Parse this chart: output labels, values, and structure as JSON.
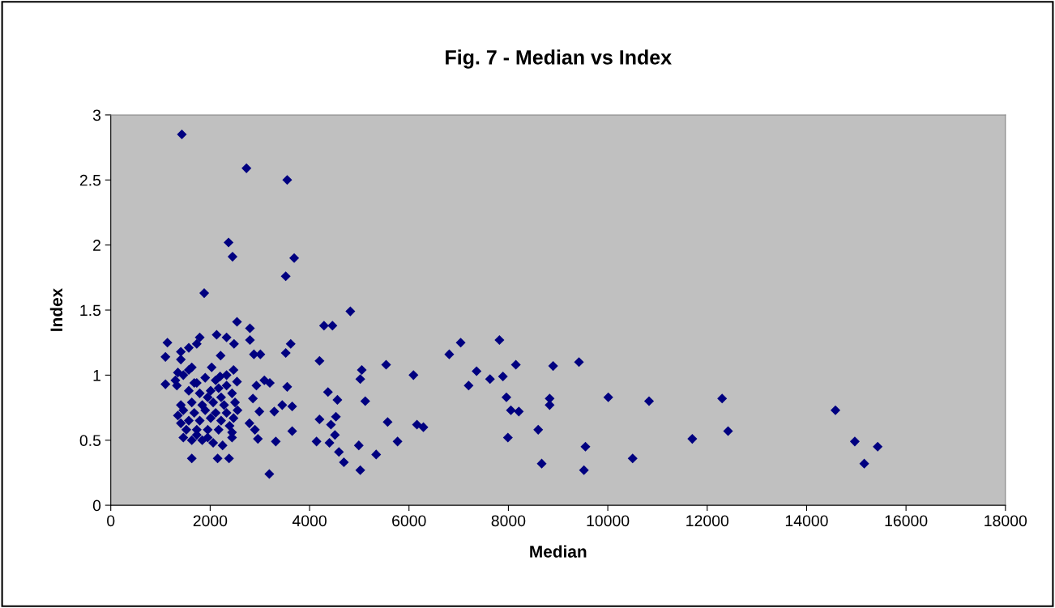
{
  "chart_data": {
    "type": "scatter",
    "title": "Fig. 7 - Median vs Index",
    "xlabel": "Median",
    "ylabel": "Index",
    "xlim": [
      0,
      18000
    ],
    "xticks": [
      0,
      2000,
      4000,
      6000,
      8000,
      10000,
      12000,
      14000,
      16000,
      18000
    ],
    "ylim": [
      0,
      3
    ],
    "yticks": [
      0,
      {
        "value": 0.5,
        "label": "0.5"
      },
      1,
      {
        "value": 1.5,
        "label": "1.5"
      },
      2,
      {
        "value": 2.5,
        "label": "2.5"
      },
      3
    ],
    "grid": false,
    "legend": false,
    "marker": "diamond",
    "series": [
      {
        "color": "#000080",
        "x": [
          1430,
          2730,
          3550,
          2370,
          2450,
          3690,
          3520,
          1880,
          2540,
          4820,
          4290,
          4460,
          2800,
          3620,
          3520,
          4200,
          5050,
          5020,
          5540,
          6090,
          6810,
          7040,
          7820,
          7360,
          7200,
          7630,
          7890,
          8150,
          8900,
          9420,
          7960,
          8050,
          8210,
          8830,
          8830,
          8600,
          7990,
          8670,
          9550,
          9520,
          3200,
          3550,
          3450,
          3650,
          3290,
          3650,
          3320,
          3190,
          4370,
          4560,
          5120,
          4200,
          4530,
          4430,
          4510,
          4140,
          4400,
          4590,
          4690,
          4990,
          5020,
          5340,
          5570,
          5770,
          6160,
          6290,
          10010,
          10830,
          12300,
          14580,
          10500,
          11700,
          12420,
          14970,
          15430,
          15160,
          1140,
          1790,
          2130,
          2330,
          2480,
          2800,
          1100,
          1410,
          1410,
          1570,
          1730,
          2210,
          2880,
          3010,
          1100,
          1330,
          1350,
          1630,
          2030,
          2470,
          2540,
          2200,
          2930,
          3090,
          2860,
          2990,
          2790,
          2900,
          2960,
          1630,
          2150,
          2380,
          1460,
          1300,
          1680,
          1900,
          2110,
          2330,
          2440,
          2220,
          2010,
          1790,
          1570,
          1410,
          1630,
          1840,
          2060,
          2280,
          2500,
          2550,
          2330,
          2110,
          1900,
          1680,
          1460,
          1350,
          1570,
          1790,
          2010,
          2220,
          2470,
          2390,
          2170,
          1950,
          1730,
          1520,
          1460,
          1630,
          1840,
          2060,
          2250,
          2440,
          2440,
          1950,
          1730,
          1410,
          1950,
          2170,
          1730,
          2330,
          1570
        ],
        "values": [
          2.85,
          2.59,
          2.5,
          2.02,
          1.91,
          1.9,
          1.76,
          1.63,
          1.41,
          1.49,
          1.38,
          1.38,
          1.36,
          1.24,
          1.17,
          1.11,
          1.04,
          0.97,
          1.08,
          1.0,
          1.16,
          1.25,
          1.27,
          1.03,
          0.92,
          0.97,
          0.99,
          1.08,
          1.07,
          1.1,
          0.83,
          0.73,
          0.72,
          0.82,
          0.77,
          0.58,
          0.52,
          0.32,
          0.45,
          0.27,
          0.94,
          0.91,
          0.77,
          0.76,
          0.72,
          0.57,
          0.49,
          0.24,
          0.87,
          0.81,
          0.8,
          0.66,
          0.68,
          0.62,
          0.54,
          0.49,
          0.48,
          0.41,
          0.33,
          0.46,
          0.27,
          0.39,
          0.64,
          0.49,
          0.62,
          0.6,
          0.83,
          0.8,
          0.82,
          0.73,
          0.36,
          0.51,
          0.57,
          0.49,
          0.45,
          0.32,
          1.25,
          1.29,
          1.31,
          1.29,
          1.24,
          1.27,
          1.14,
          1.18,
          1.12,
          1.21,
          1.24,
          1.15,
          1.16,
          1.16,
          0.93,
          0.92,
          1.02,
          1.06,
          1.06,
          1.04,
          0.95,
          0.99,
          0.92,
          0.96,
          0.82,
          0.72,
          0.63,
          0.58,
          0.51,
          0.36,
          0.36,
          0.36,
          1.0,
          0.96,
          0.94,
          0.98,
          0.96,
          0.92,
          0.86,
          0.83,
          0.88,
          0.86,
          0.88,
          0.77,
          0.79,
          0.77,
          0.79,
          0.77,
          0.79,
          0.73,
          0.71,
          0.71,
          0.73,
          0.71,
          0.73,
          0.69,
          0.65,
          0.65,
          0.67,
          0.65,
          0.67,
          0.61,
          0.58,
          0.58,
          0.58,
          0.58,
          0.52,
          0.5,
          0.5,
          0.48,
          0.46,
          0.52,
          0.56,
          0.52,
          0.54,
          0.63,
          0.83,
          0.9,
          0.94,
          1.0,
          1.04
        ]
      }
    ]
  }
}
